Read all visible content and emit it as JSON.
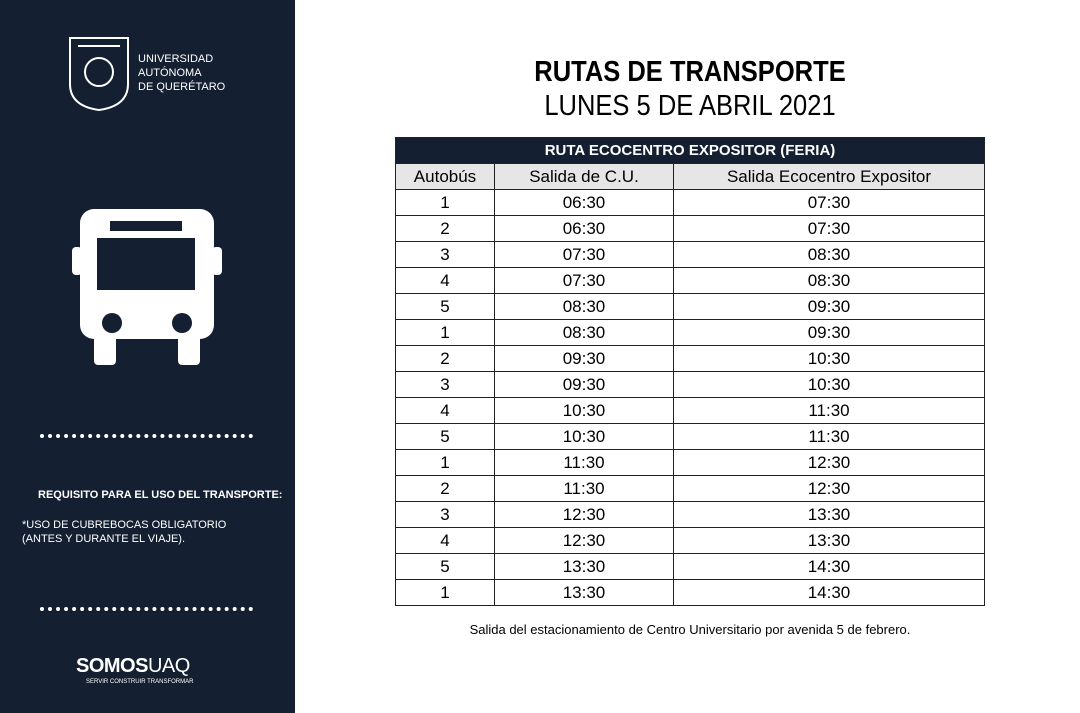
{
  "sidebar": {
    "university": [
      "UNIVERSIDAD",
      "AUTÓNOMA",
      "DE QUERÉTARO"
    ],
    "requirement_title": "REQUISITO PARA EL USO DEL TRANSPORTE:",
    "requirement_text": [
      "*USO DE CUBREBOCAS OBLIGATORIO",
      "(ANTES Y DURANTE EL VIAJE)."
    ],
    "brand": "SOMOS",
    "brand_suffix": "UAQ",
    "tagline": "SERVIR CONSTRUIR TRANSFORMAR"
  },
  "header": {
    "title": "RUTAS DE TRANSPORTE",
    "subtitle": "LUNES 5 DE ABRIL 2021"
  },
  "table": {
    "title": "RUTA ECOCENTRO EXPOSITOR (FERIA)",
    "columns": [
      "Autobús",
      "Salida de C.U.",
      "Salida Ecocentro Expositor"
    ],
    "rows": [
      [
        "1",
        "06:30",
        "07:30"
      ],
      [
        "2",
        "06:30",
        "07:30"
      ],
      [
        "3",
        "07:30",
        "08:30"
      ],
      [
        "4",
        "07:30",
        "08:30"
      ],
      [
        "5",
        "08:30",
        "09:30"
      ],
      [
        "1",
        "08:30",
        "09:30"
      ],
      [
        "2",
        "09:30",
        "10:30"
      ],
      [
        "3",
        "09:30",
        "10:30"
      ],
      [
        "4",
        "10:30",
        "11:30"
      ],
      [
        "5",
        "10:30",
        "11:30"
      ],
      [
        "1",
        "11:30",
        "12:30"
      ],
      [
        "2",
        "11:30",
        "12:30"
      ],
      [
        "3",
        "12:30",
        "13:30"
      ],
      [
        "4",
        "12:30",
        "13:30"
      ],
      [
        "5",
        "13:30",
        "14:30"
      ],
      [
        "1",
        "13:30",
        "14:30"
      ]
    ]
  },
  "footnote": "Salida del estacionamiento de Centro Universitario por avenida 5 de febrero."
}
